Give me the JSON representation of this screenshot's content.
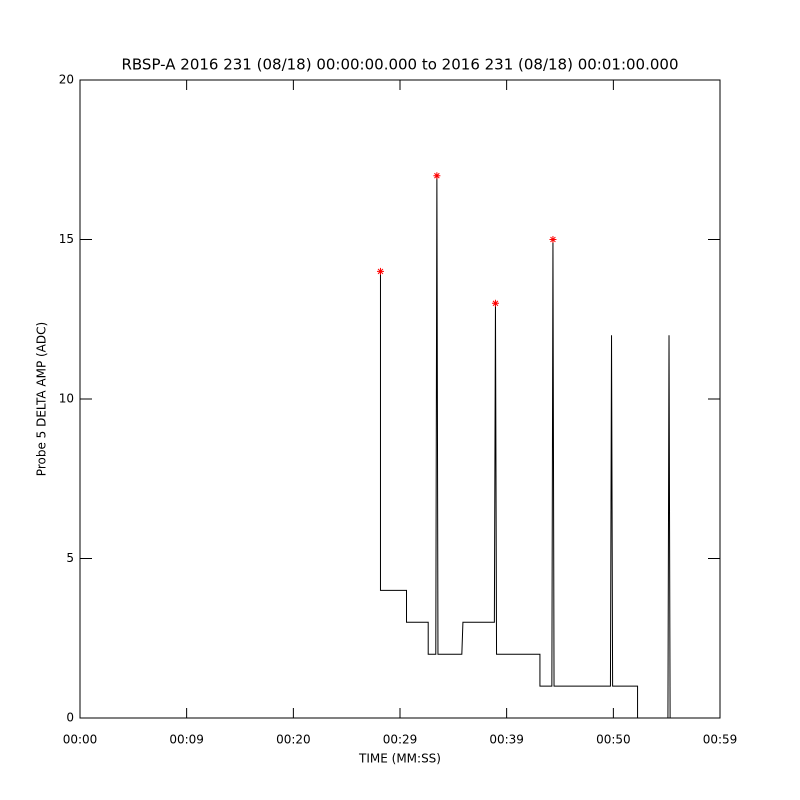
{
  "chart_data": {
    "type": "line",
    "title": "RBSP-A 2016 231 (08/18) 00:00:00.000 to 2016 231 (08/18) 00:01:00.000",
    "xlabel": "TIME (MM:SS)",
    "ylabel": "Probe 5 DELTA AMP (ADC)",
    "xlim": [
      0,
      59
    ],
    "xticks": [
      {
        "value": 0,
        "label": "00:00"
      },
      {
        "value": 9.83,
        "label": "00:09"
      },
      {
        "value": 19.67,
        "label": "00:20"
      },
      {
        "value": 29.5,
        "label": "00:29"
      },
      {
        "value": 39.33,
        "label": "00:39"
      },
      {
        "value": 49.17,
        "label": "00:50"
      },
      {
        "value": 59,
        "label": "00:59"
      }
    ],
    "ylim": [
      0,
      20
    ],
    "yticks": [
      0,
      5,
      10,
      15,
      20
    ],
    "series": [
      {
        "color": "#000000",
        "x": [
          27.7,
          27.7,
          27.7,
          30.1,
          30.1,
          32.1,
          32.1,
          32.8,
          32.9,
          33.0,
          35.2,
          35.3,
          38.2,
          38.3,
          38.4,
          42.4,
          42.4,
          43.5,
          43.6,
          43.7,
          48.9,
          49.0,
          49.1,
          51.4,
          51.4,
          54.2,
          54.3,
          54.4
        ],
        "values": [
          14,
          4.6,
          4,
          4,
          3,
          3,
          2,
          2,
          17,
          2,
          2,
          3,
          3,
          13,
          2,
          2,
          1,
          1,
          15,
          1,
          1,
          12,
          1,
          1,
          0,
          0,
          12,
          0
        ]
      },
      {
        "color": "#ff0000",
        "marker": "asterisk",
        "x": [
          27.7,
          32.9,
          38.3,
          43.6
        ],
        "values": [
          14,
          17,
          13,
          15
        ]
      }
    ]
  }
}
